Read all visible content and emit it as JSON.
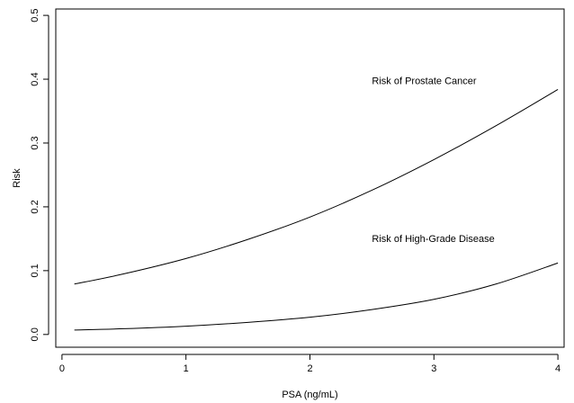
{
  "chart_data": {
    "type": "line",
    "title": "",
    "xlabel": "PSA (ng/mL)",
    "ylabel": "Risk",
    "xlim": [
      -0.05,
      4.05
    ],
    "ylim": [
      -0.02,
      0.51
    ],
    "x_ticks": [
      0,
      1,
      2,
      3,
      4
    ],
    "x_tick_labels": [
      "0",
      "1",
      "2",
      "3",
      "4"
    ],
    "y_ticks": [
      0.0,
      0.1,
      0.2,
      0.3,
      0.4,
      0.5
    ],
    "y_tick_labels": [
      "0.0",
      "0.1",
      "0.2",
      "0.3",
      "0.4",
      "0.5"
    ],
    "grid": false,
    "legend": "none",
    "series": [
      {
        "label": "Risk of Prostate Cancer",
        "x": [
          0.1,
          0.5,
          1.0,
          1.5,
          2.0,
          2.5,
          3.0,
          3.5,
          4.0
        ],
        "y": [
          0.079,
          0.095,
          0.119,
          0.149,
          0.184,
          0.226,
          0.274,
          0.327,
          0.384
        ]
      },
      {
        "label": "Risk of High-Grade Disease",
        "x": [
          0.1,
          0.5,
          1.0,
          1.5,
          2.0,
          2.5,
          3.0,
          3.5,
          4.0
        ],
        "y": [
          0.007,
          0.009,
          0.013,
          0.019,
          0.027,
          0.039,
          0.055,
          0.079,
          0.112
        ]
      }
    ],
    "annotations": [
      {
        "text": "Risk of Prostate Cancer",
        "x": 2.5,
        "y": 0.392
      },
      {
        "text": "Risk of High-Grade Disease",
        "x": 2.5,
        "y": 0.145
      }
    ]
  }
}
